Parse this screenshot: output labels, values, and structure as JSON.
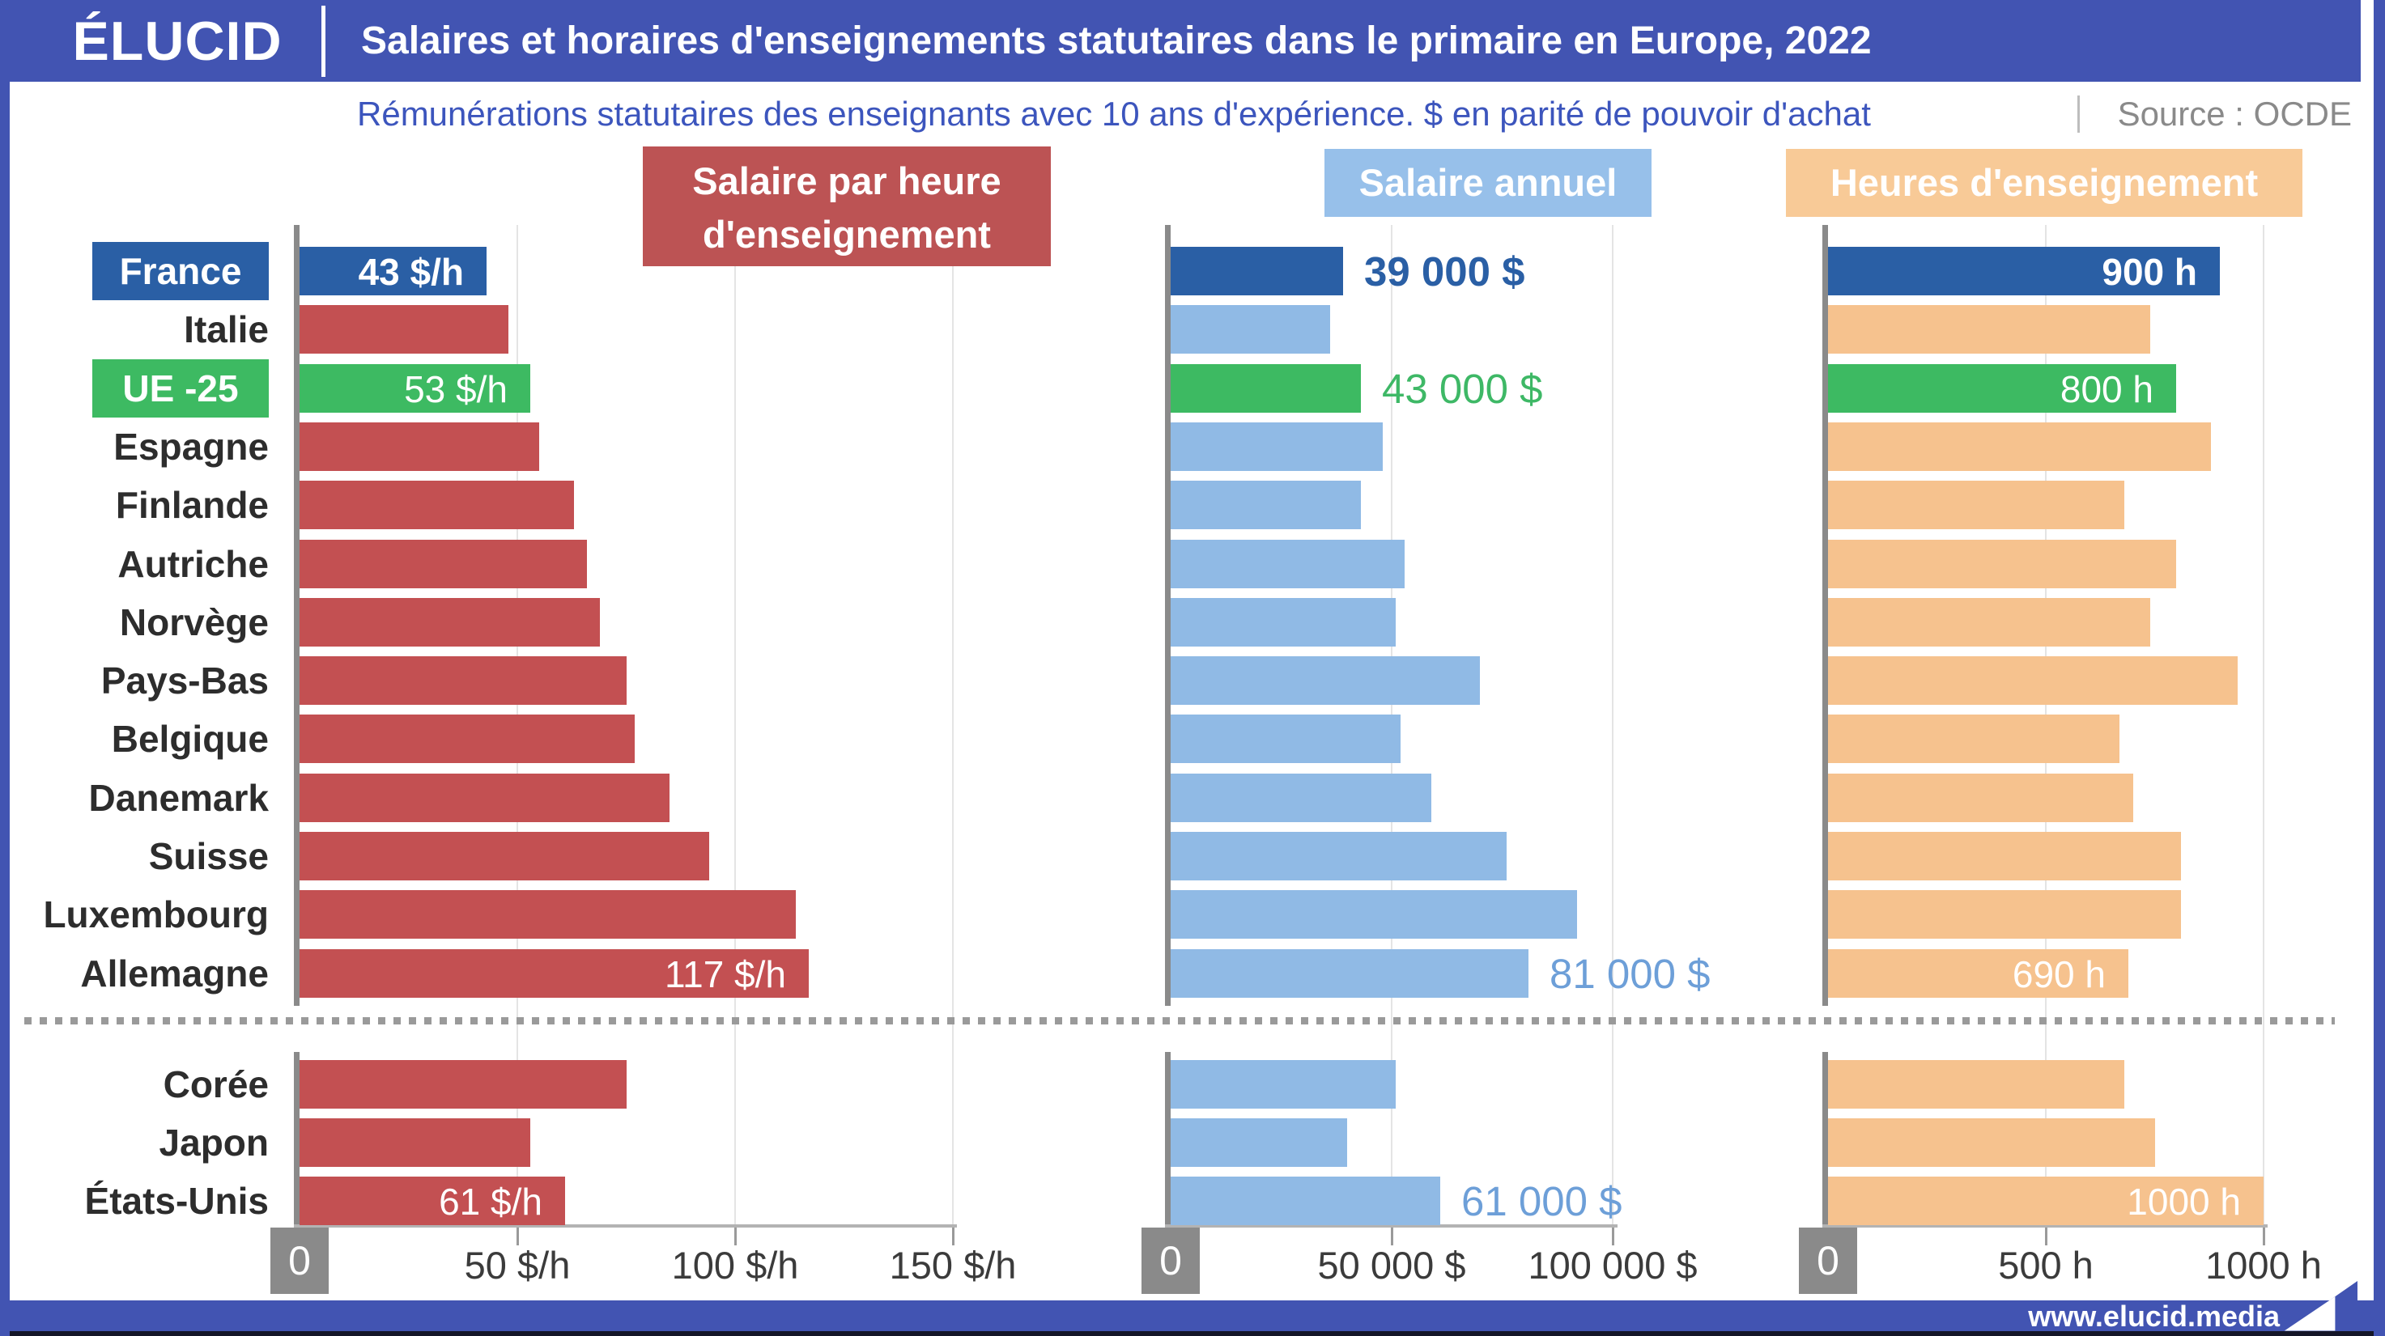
{
  "header": {
    "logo": "ÉLUCID",
    "title": "Salaires et horaires d'enseignements statutaires dans le primaire en Europe, 2022"
  },
  "subtitle": {
    "text": "Rémunérations statutaires des enseignants avec 10 ans d'expérience. $ en parité de pouvoir d'achat",
    "source": "Source : OCDE"
  },
  "footer": {
    "url": "www.elucid.media"
  },
  "colors": {
    "royal": "#4254b2",
    "navy": "#2a5fa5",
    "red": "#c35052",
    "blue": "#90bae5",
    "orange": "#f6c28e",
    "green": "#3dba62",
    "greenText": "#3eb866",
    "blueText": "#6d9fd8",
    "legendRed": "#bc5354",
    "legendBlue": "#97c0ea",
    "legendOrange": "#f8ca97",
    "subtitleBlue": "#3c55bd"
  },
  "chart_data": {
    "type": "bar",
    "orientation": "horizontal",
    "grid": true,
    "panels": [
      {
        "id": "hourly",
        "title": "Salaire par heure d'enseignement",
        "unit": "$/h",
        "xlim": [
          0,
          160
        ],
        "ticks": [
          {
            "value": 0,
            "label": "0"
          },
          {
            "value": 50,
            "label": "50 $/h"
          },
          {
            "value": 100,
            "label": "100 $/h"
          },
          {
            "value": 150,
            "label": "150 $/h"
          }
        ]
      },
      {
        "id": "annual",
        "title": "Salaire annuel",
        "unit": "$",
        "xlim": [
          0,
          110000
        ],
        "ticks": [
          {
            "value": 0,
            "label": "0"
          },
          {
            "value": 50000,
            "label": "50 000 $"
          },
          {
            "value": 100000,
            "label": "100 000 $"
          }
        ]
      },
      {
        "id": "hours",
        "title": "Heures d'enseignement",
        "unit": "h",
        "xlim": [
          0,
          1060
        ],
        "ticks": [
          {
            "value": 0,
            "label": "0"
          },
          {
            "value": 500,
            "label": "500 h"
          },
          {
            "value": 1000,
            "label": "1000 h"
          }
        ]
      }
    ],
    "groups": [
      {
        "name": "europe",
        "rows": [
          {
            "country": "France",
            "highlight": "france",
            "hourly": 43,
            "annual": 39000,
            "hours": 900,
            "labels": {
              "hourly": "43 $/h",
              "annual": "39 000 $",
              "hours": "900 h"
            }
          },
          {
            "country": "Italie",
            "hourly": 48,
            "annual": 36000,
            "hours": 740
          },
          {
            "country": "UE -25",
            "highlight": "ue",
            "hourly": 53,
            "annual": 43000,
            "hours": 800,
            "labels": {
              "hourly": "53 $/h",
              "annual": "43 000 $",
              "hours": "800 h"
            }
          },
          {
            "country": "Espagne",
            "hourly": 55,
            "annual": 48000,
            "hours": 880
          },
          {
            "country": "Finlande",
            "hourly": 63,
            "annual": 43000,
            "hours": 680
          },
          {
            "country": "Autriche",
            "hourly": 66,
            "annual": 53000,
            "hours": 800
          },
          {
            "country": "Norvège",
            "hourly": 69,
            "annual": 51000,
            "hours": 740
          },
          {
            "country": "Pays-Bas",
            "hourly": 75,
            "annual": 70000,
            "hours": 940
          },
          {
            "country": "Belgique",
            "hourly": 77,
            "annual": 52000,
            "hours": 670
          },
          {
            "country": "Danemark",
            "hourly": 85,
            "annual": 59000,
            "hours": 700
          },
          {
            "country": "Suisse",
            "hourly": 94,
            "annual": 76000,
            "hours": 810
          },
          {
            "country": "Luxembourg",
            "hourly": 114,
            "annual": 92000,
            "hours": 810
          },
          {
            "country": "Allemagne",
            "hourly": 117,
            "annual": 81000,
            "hours": 690,
            "labels": {
              "hourly": "117 $/h",
              "annual": "81 000 $",
              "hours": "690 h"
            }
          }
        ]
      },
      {
        "name": "hors-europe",
        "rows": [
          {
            "country": "Corée",
            "hourly": 75,
            "annual": 51000,
            "hours": 680
          },
          {
            "country": "Japon",
            "hourly": 53,
            "annual": 40000,
            "hours": 750
          },
          {
            "country": "États-Unis",
            "hourly": 61,
            "annual": 61000,
            "hours": 1000,
            "labels": {
              "hourly": "61 $/h",
              "annual": "61 000 $",
              "hours": "1000 h"
            }
          }
        ]
      }
    ]
  }
}
